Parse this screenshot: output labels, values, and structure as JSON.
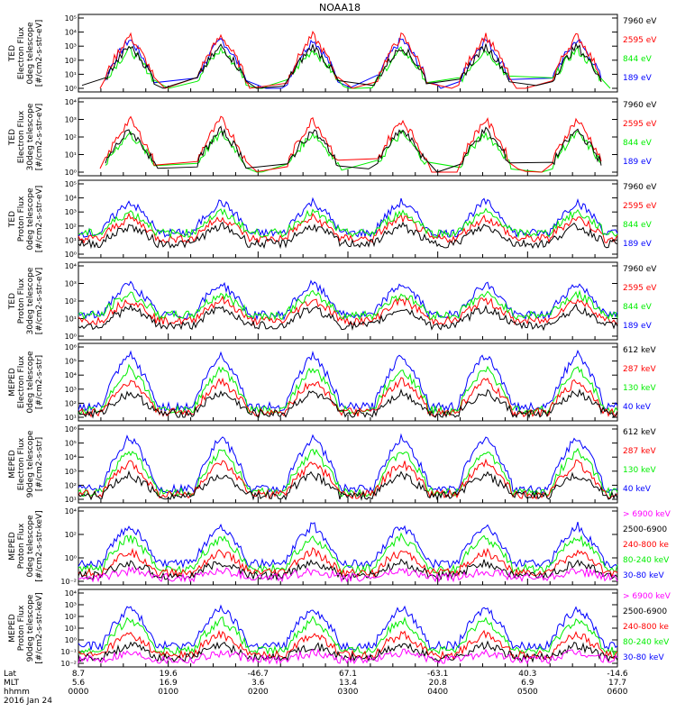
{
  "title": "NOAA18",
  "footer": {
    "row_labels": [
      "Lat",
      "MLT",
      "hhmm",
      "2016 Jan 24"
    ],
    "lat": [
      "8.7",
      "19.6",
      "-46.7",
      "67.1",
      "-63.1",
      "40.3",
      "-14.6"
    ],
    "mlt": [
      "5.6",
      "16.9",
      "3.6",
      "13.4",
      "20.8",
      "6.9",
      "17.7"
    ],
    "hhmm": [
      "0000",
      "0100",
      "0200",
      "0300",
      "0400",
      "0500",
      "0600"
    ]
  },
  "colors": {
    "black": "#000000",
    "red": "#ff0000",
    "green": "#00ee00",
    "blue": "#0000ff",
    "magenta": "#ff00ff"
  },
  "chart_data": [
    {
      "type": "line",
      "ylabel": "TED Electron Flux 0deg telescope [#/cm2-s-str-eV]",
      "ytick_labels": [
        "10⁰",
        "10¹",
        "10²",
        "10³",
        "10⁴",
        "10⁵"
      ],
      "legend": [
        {
          "text": "7960 eV",
          "color": "black"
        },
        {
          "text": "2595 eV",
          "color": "red"
        },
        {
          "text": "844 eV",
          "color": "green"
        },
        {
          "text": "189 eV",
          "color": "blue"
        }
      ],
      "x": [
        "0000",
        "0100",
        "0200",
        "0300",
        "0400",
        "0500",
        "0600"
      ]
    },
    {
      "type": "line",
      "ylabel": "TED Electron Flux 30deg telescope [#/cm2-s-str-eV]",
      "ytick_labels": [
        "10⁰",
        "10¹",
        "10²",
        "10³",
        "10⁴"
      ],
      "legend": [
        {
          "text": "7960 eV",
          "color": "black"
        },
        {
          "text": "2595 eV",
          "color": "red"
        },
        {
          "text": "844 eV",
          "color": "green"
        },
        {
          "text": "189 eV",
          "color": "blue"
        }
      ],
      "x": [
        "0000",
        "0100",
        "0200",
        "0300",
        "0400",
        "0500",
        "0600"
      ]
    },
    {
      "type": "line",
      "ylabel": "TED Proton Flux 0deg telescope [#/cm2-s-str-eV]",
      "ytick_labels": [
        "10⁰",
        "10¹",
        "10²",
        "10³",
        "10⁴",
        "10⁵"
      ],
      "legend": [
        {
          "text": "7960 eV",
          "color": "black"
        },
        {
          "text": "2595 eV",
          "color": "red"
        },
        {
          "text": "844 eV",
          "color": "green"
        },
        {
          "text": "189 eV",
          "color": "blue"
        }
      ],
      "x": [
        "0000",
        "0100",
        "0200",
        "0300",
        "0400",
        "0500",
        "0600"
      ]
    },
    {
      "type": "line",
      "ylabel": "TED Proton Flux 30deg telescope [#/cm2-s-str-eV]",
      "ytick_labels": [
        "10⁰",
        "10¹",
        "10²",
        "10³",
        "10⁴"
      ],
      "legend": [
        {
          "text": "7960 eV",
          "color": "black"
        },
        {
          "text": "2595 eV",
          "color": "red"
        },
        {
          "text": "844 eV",
          "color": "green"
        },
        {
          "text": "189 eV",
          "color": "blue"
        }
      ],
      "x": [
        "0000",
        "0100",
        "0200",
        "0300",
        "0400",
        "0500",
        "0600"
      ]
    },
    {
      "type": "line",
      "ylabel": "MEPED Electron Flux 0deg telescope [#/cm2-s-str]",
      "ytick_labels": [
        "10¹",
        "10²",
        "10³",
        "10⁴",
        "10⁵",
        "10⁶"
      ],
      "legend": [
        {
          "text": "612 keV",
          "color": "black"
        },
        {
          "text": "287 keV",
          "color": "red"
        },
        {
          "text": "130 keV",
          "color": "green"
        },
        {
          "text": "40 keV",
          "color": "blue"
        }
      ],
      "x": [
        "0000",
        "0100",
        "0200",
        "0300",
        "0400",
        "0500",
        "0600"
      ]
    },
    {
      "type": "line",
      "ylabel": "MEPED Electron Flux 90deg telescope [#/cm2-s-str]",
      "ytick_labels": [
        "10¹",
        "10²",
        "10³",
        "10⁴",
        "10⁵",
        "10⁶"
      ],
      "legend": [
        {
          "text": "612 keV",
          "color": "black"
        },
        {
          "text": "287 keV",
          "color": "red"
        },
        {
          "text": "130 keV",
          "color": "green"
        },
        {
          "text": "40 keV",
          "color": "blue"
        }
      ],
      "x": [
        "0000",
        "0100",
        "0200",
        "0300",
        "0400",
        "0500",
        "0600"
      ]
    },
    {
      "type": "line",
      "ylabel": "MEPED Proton Flux 0deg telescope [#/cm2-s-str-keV]",
      "ytick_labels": [
        "10⁻²",
        "10⁰",
        "10²",
        "10⁴"
      ],
      "legend": [
        {
          "text": "> 6900 keV",
          "color": "magenta"
        },
        {
          "text": "2500-6900",
          "color": "black"
        },
        {
          "text": "240-800 ke",
          "color": "red"
        },
        {
          "text": "80-240 keV",
          "color": "green"
        },
        {
          "text": "30-80 keV",
          "color": "blue"
        }
      ],
      "x": [
        "0000",
        "0100",
        "0200",
        "0300",
        "0400",
        "0500",
        "0600"
      ]
    },
    {
      "type": "line",
      "ylabel": "MEPED Proton Flux 90deg telescope [#/cm2-s-str-keV]",
      "ytick_labels": [
        "10⁻²",
        "10⁻¹",
        "10⁰",
        "10¹",
        "10²",
        "10³",
        "10⁴"
      ],
      "legend": [
        {
          "text": "> 6900 keV",
          "color": "magenta"
        },
        {
          "text": "2500-6900",
          "color": "black"
        },
        {
          "text": "240-800 ke",
          "color": "red"
        },
        {
          "text": "80-240 keV",
          "color": "green"
        },
        {
          "text": "30-80 keV",
          "color": "blue"
        }
      ],
      "x": [
        "0000",
        "0100",
        "0200",
        "0300",
        "0400",
        "0500",
        "0600"
      ]
    }
  ]
}
